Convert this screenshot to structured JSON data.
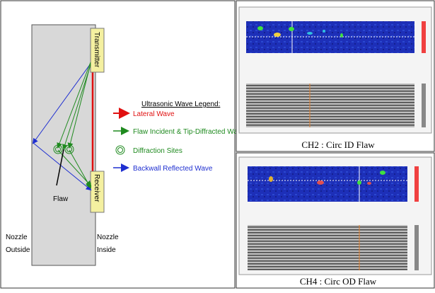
{
  "diagram": {
    "transmitter": "Transmitter",
    "receiver": "Receiver",
    "flaw_label": "Flaw",
    "nozzle_outside": [
      "Nozzle",
      "Outside"
    ],
    "nozzle_inside": [
      "Nozzle",
      "Inside"
    ],
    "legend": {
      "title": "Ultrasonic Wave Legend:",
      "items": [
        "Lateral Wave",
        "Flaw Incident & Tip-Diffracted Waves",
        "Diffraction Sites",
        "Backwall Reflected Wave"
      ]
    }
  },
  "panels": [
    {
      "caption": "CH2 : Circ ID Flaw"
    },
    {
      "caption": "CH4 : Circ OD Flaw"
    }
  ]
}
